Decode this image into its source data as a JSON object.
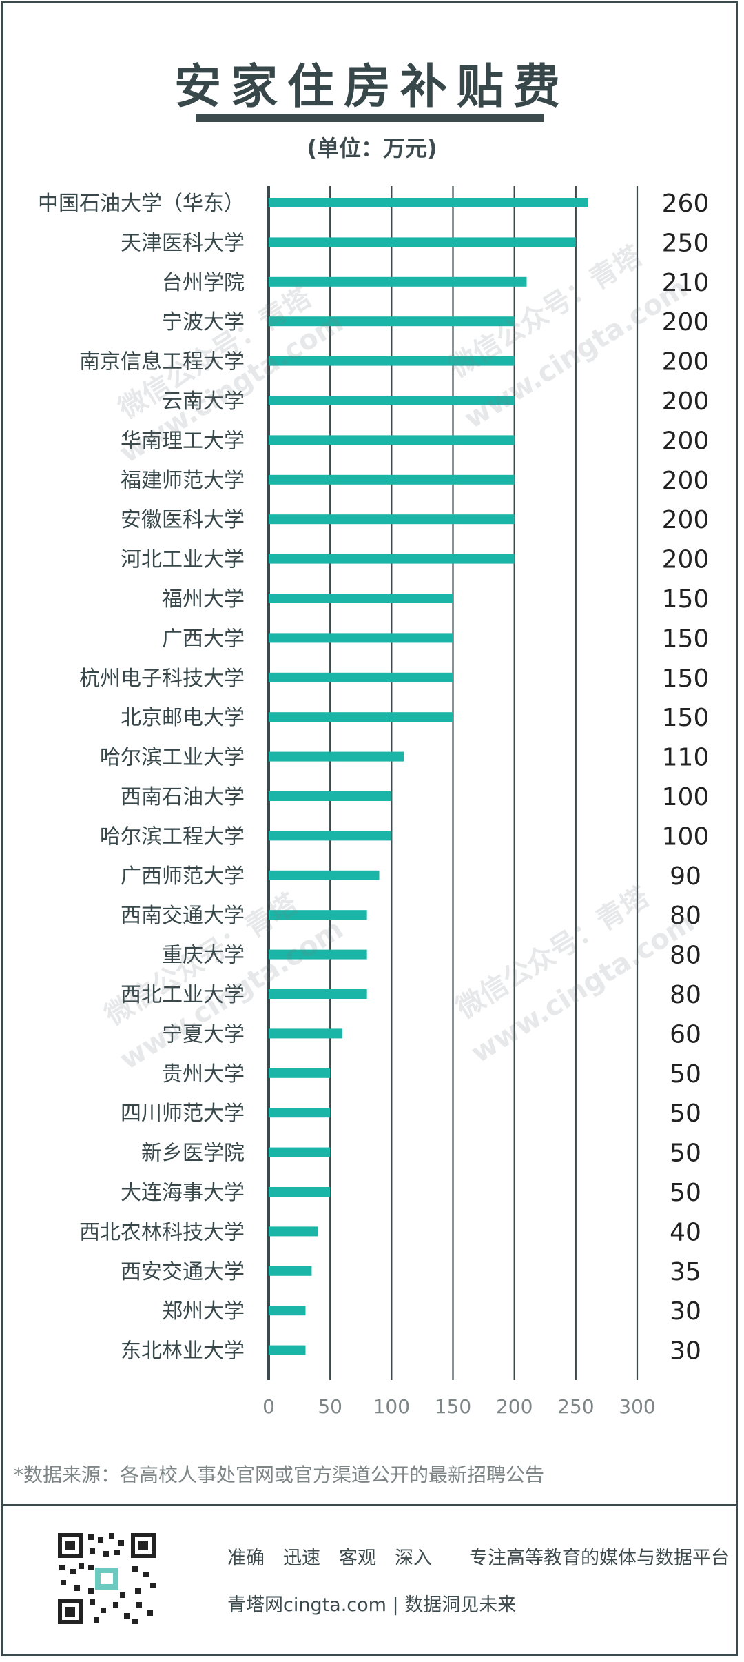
{
  "title": "安家住房补贴费",
  "unit": "(单位：万元)",
  "source_note": "*数据来源：各高校人事处官网或官方渠道公开的最新招聘公告",
  "footer": {
    "slogan": "准确　迅速　客观　深入　　专注高等教育的媒体与数据平台",
    "site": "青塔网cingta.com | 数据洞见未来"
  },
  "watermarks": [
    "微信公众号：青塔",
    "www.cingta.com"
  ],
  "colors": {
    "bar": "#1ab5a6",
    "axis": "#3d4a4d",
    "text": "#37474a"
  },
  "chart_data": {
    "type": "bar",
    "orientation": "horizontal",
    "categories": [
      "中国石油大学（华东）",
      "天津医科大学",
      "台州学院",
      "宁波大学",
      "南京信息工程大学",
      "云南大学",
      "华南理工大学",
      "福建师范大学",
      "安徽医科大学",
      "河北工业大学",
      "福州大学",
      "广西大学",
      "杭州电子科技大学",
      "北京邮电大学",
      "哈尔滨工业大学",
      "西南石油大学",
      "哈尔滨工程大学",
      "广西师范大学",
      "西南交通大学",
      "重庆大学",
      "西北工业大学",
      "宁夏大学",
      "贵州大学",
      "四川师范大学",
      "新乡医学院",
      "大连海事大学",
      "西北农林科技大学",
      "西安交通大学",
      "郑州大学",
      "东北林业大学"
    ],
    "values": [
      260,
      250,
      210,
      200,
      200,
      200,
      200,
      200,
      200,
      200,
      150,
      150,
      150,
      150,
      110,
      100,
      100,
      90,
      80,
      80,
      80,
      60,
      50,
      50,
      50,
      50,
      40,
      35,
      30,
      30
    ],
    "xlim": [
      0,
      300
    ],
    "xticks": [
      0,
      50,
      100,
      150,
      200,
      250,
      300
    ],
    "grid": true,
    "value_labels_position": "right"
  }
}
